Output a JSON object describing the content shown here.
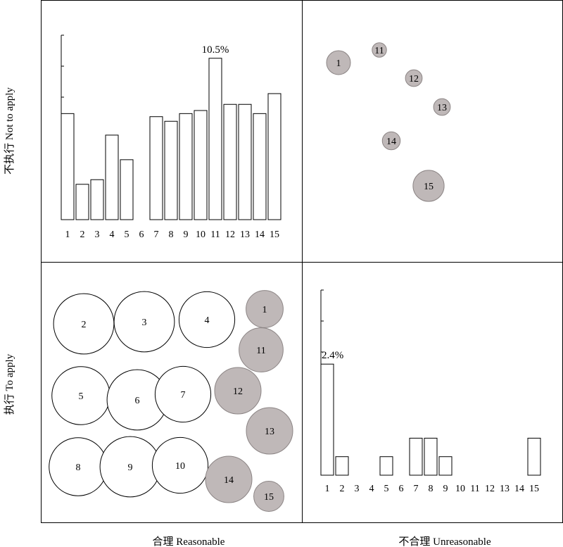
{
  "labels": {
    "row_top": "不执行 Not to apply",
    "row_bottom": "执行 To apply",
    "col_left": "合理 Reasonable",
    "col_right": "不合理 Unreasonable"
  },
  "chart_data": [
    {
      "type": "bar",
      "panel": "top-left",
      "categories": [
        "1",
        "2",
        "3",
        "4",
        "5",
        "6",
        "7",
        "8",
        "9",
        "10",
        "11",
        "12",
        "13",
        "14",
        "15"
      ],
      "values": [
        6.9,
        2.3,
        2.6,
        5.5,
        3.9,
        0,
        6.7,
        6.4,
        6.9,
        7.1,
        10.5,
        7.5,
        7.5,
        6.9,
        8.2
      ],
      "ylim": [
        0,
        12
      ],
      "grid": false,
      "annotations": [
        {
          "category": "11",
          "text": "10.5%"
        }
      ]
    },
    {
      "type": "scatter",
      "panel": "top-right",
      "points": [
        {
          "label": "1",
          "size": 1.0
        },
        {
          "label": "11",
          "size": 0.6
        },
        {
          "label": "12",
          "size": 0.7
        },
        {
          "label": "13",
          "size": 0.7
        },
        {
          "label": "14",
          "size": 0.75
        },
        {
          "label": "15",
          "size": 1.3
        }
      ]
    },
    {
      "type": "scatter",
      "panel": "bottom-left",
      "points": [
        {
          "label": "2",
          "size": 2.6,
          "group": "white"
        },
        {
          "label": "3",
          "size": 2.6,
          "group": "white"
        },
        {
          "label": "4",
          "size": 2.4,
          "group": "white"
        },
        {
          "label": "5",
          "size": 2.5,
          "group": "white"
        },
        {
          "label": "6",
          "size": 2.6,
          "group": "white"
        },
        {
          "label": "7",
          "size": 2.4,
          "group": "white"
        },
        {
          "label": "8",
          "size": 2.5,
          "group": "white"
        },
        {
          "label": "9",
          "size": 2.6,
          "group": "white"
        },
        {
          "label": "10",
          "size": 2.4,
          "group": "white"
        },
        {
          "label": "1",
          "size": 1.6,
          "group": "grey"
        },
        {
          "label": "11",
          "size": 1.9,
          "group": "grey"
        },
        {
          "label": "12",
          "size": 2.0,
          "group": "grey"
        },
        {
          "label": "13",
          "size": 2.0,
          "group": "grey"
        },
        {
          "label": "14",
          "size": 2.0,
          "group": "grey"
        },
        {
          "label": "15",
          "size": 1.3,
          "group": "grey"
        }
      ]
    },
    {
      "type": "bar",
      "panel": "bottom-right",
      "categories": [
        "1",
        "2",
        "3",
        "4",
        "5",
        "6",
        "7",
        "8",
        "9",
        "10",
        "11",
        "12",
        "13",
        "14",
        "15"
      ],
      "values": [
        2.4,
        0.4,
        0,
        0,
        0.4,
        0,
        0.8,
        0.8,
        0.4,
        0,
        0,
        0,
        0,
        0,
        0.8
      ],
      "ylim": [
        0,
        4
      ],
      "grid": false,
      "annotations": [
        {
          "category": "1",
          "text": "2.4%"
        }
      ]
    }
  ]
}
